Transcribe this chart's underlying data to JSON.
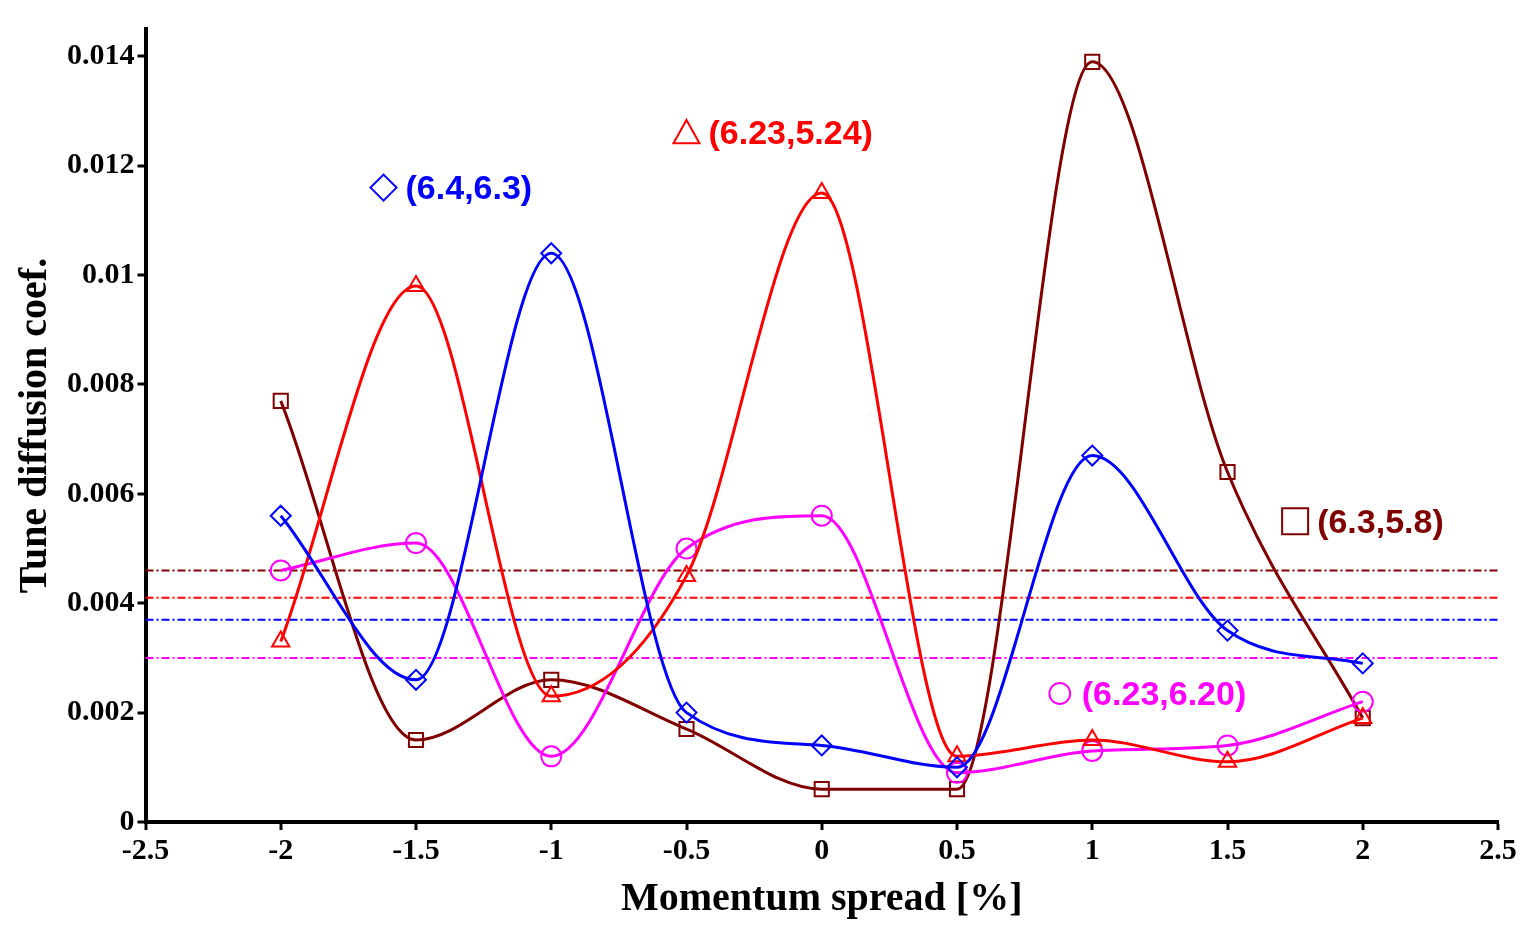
{
  "chart_data": {
    "type": "line",
    "xlabel": "Momentum spread [%]",
    "ylabel": "Tune diffusion coef.",
    "x": [
      -2,
      -1.5,
      -1,
      -0.5,
      0,
      0.5,
      1,
      1.5,
      2
    ],
    "xlim": [
      -2.5,
      2.5
    ],
    "xticks": [
      -2.5,
      -2,
      -1.5,
      -1,
      -0.5,
      0,
      0.5,
      1,
      1.5,
      2,
      2.5
    ],
    "ylim": [
      0,
      0.0145
    ],
    "yticks": [
      0,
      0.002,
      0.004,
      0.006,
      0.008,
      0.01,
      0.012,
      0.014
    ],
    "grid": false,
    "legend": "top",
    "series": [
      {
        "name": "(6.4,6.3)",
        "color": "#0000ff",
        "marker": "diamond",
        "values": [
          0.0056,
          0.0026,
          0.0104,
          0.002,
          0.0014,
          0.001,
          0.0067,
          0.0035,
          0.0029
        ]
      },
      {
        "name": "(6.23,5.24)",
        "color": "#ff0000",
        "marker": "triangle",
        "values": [
          0.0033,
          0.0098,
          0.0023,
          0.0045,
          0.0115,
          0.0012,
          0.0015,
          0.0011,
          0.0019
        ]
      },
      {
        "name": "(6.23,6.20)",
        "color": "#ff00ff",
        "marker": "circle",
        "values": [
          0.0046,
          0.0051,
          0.0012,
          0.005,
          0.0056,
          0.0009,
          0.0013,
          0.0014,
          0.0022
        ]
      },
      {
        "name": "(6.3,5.8)",
        "color": "#800000",
        "marker": "square",
        "values": [
          0.0077,
          0.0015,
          0.0026,
          0.0017,
          0.0006,
          0.0006,
          0.0139,
          0.0064,
          0.0019
        ]
      }
    ],
    "ref_lines": [
      {
        "axis": "y",
        "value": 0.0046,
        "color": "#800000",
        "line_style": "dashed"
      },
      {
        "axis": "y",
        "value": 0.0041,
        "color": "#ff0000",
        "line_style": "dashed"
      },
      {
        "axis": "y",
        "value": 0.0037,
        "color": "#0000ff",
        "line_style": "dashed"
      },
      {
        "axis": "y",
        "value": 0.003,
        "color": "#ff00ff",
        "line_style": "dashed"
      }
    ]
  }
}
